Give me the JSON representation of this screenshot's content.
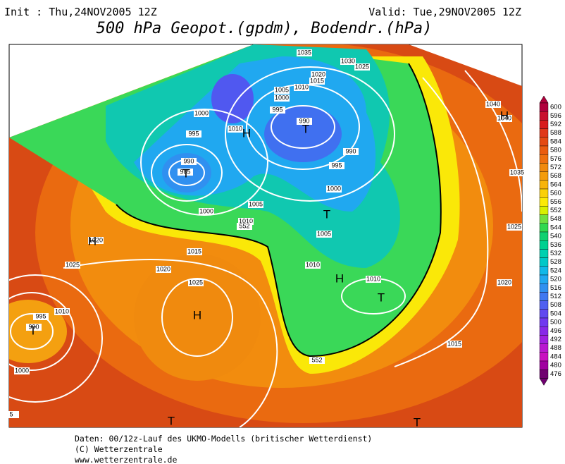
{
  "header": {
    "init": "Init : Thu,24NOV2005 12Z",
    "valid": "Valid: Tue,29NOV2005 12Z",
    "title": "500 hPa Geopot.(gpdm), Bodendr.(hPa)"
  },
  "isobar_labels": [
    "1035",
    "1030",
    "1025",
    "1020",
    "1015",
    "1010",
    "1005",
    "1000",
    "995",
    "990",
    "990",
    "995",
    "1000",
    "1005",
    "1010",
    "1010",
    "1015",
    "1020",
    "1000",
    "1005",
    "1010",
    "1015",
    "1020",
    "1025",
    "1025",
    "1020",
    "1010",
    "995",
    "990",
    "1000",
    "5",
    "1040",
    "1040",
    "1000",
    "995",
    "1010",
    "990",
    "985",
    "1035",
    "1025",
    "552",
    "552"
  ],
  "pressure_centers": [
    "H",
    "H",
    "H",
    "H",
    "H",
    "T",
    "T",
    "T",
    "T",
    "T",
    "T",
    "T"
  ],
  "color_scale": {
    "labels": [
      600,
      596,
      592,
      588,
      584,
      580,
      576,
      572,
      568,
      564,
      560,
      556,
      552,
      548,
      544,
      540,
      536,
      532,
      528,
      524,
      520,
      516,
      512,
      508,
      504,
      500,
      496,
      492,
      488,
      484,
      480,
      476
    ],
    "colors": [
      "#b0003c",
      "#c8102e",
      "#d81c1c",
      "#e03818",
      "#e44a12",
      "#ea5c10",
      "#ee7010",
      "#f08a0e",
      "#f49c0c",
      "#f7b40a",
      "#fad008",
      "#fcea06",
      "#d8f000",
      "#70e040",
      "#30d850",
      "#10d070",
      "#00d090",
      "#00d0b0",
      "#00c8c8",
      "#10b8e8",
      "#20a8f0",
      "#3090f0",
      "#4078f0",
      "#5060f0",
      "#6048f0",
      "#7038f0",
      "#8828e8",
      "#a020e0",
      "#b818d0",
      "#c810c0",
      "#a000a0",
      "#700070"
    ]
  },
  "footer": [
    "Daten: 00/12z-Lauf des UKMO-Modells (britischer Wetterdienst)",
    "(C) Wetterzentrale",
    "www.wetterzentrale.de"
  ]
}
